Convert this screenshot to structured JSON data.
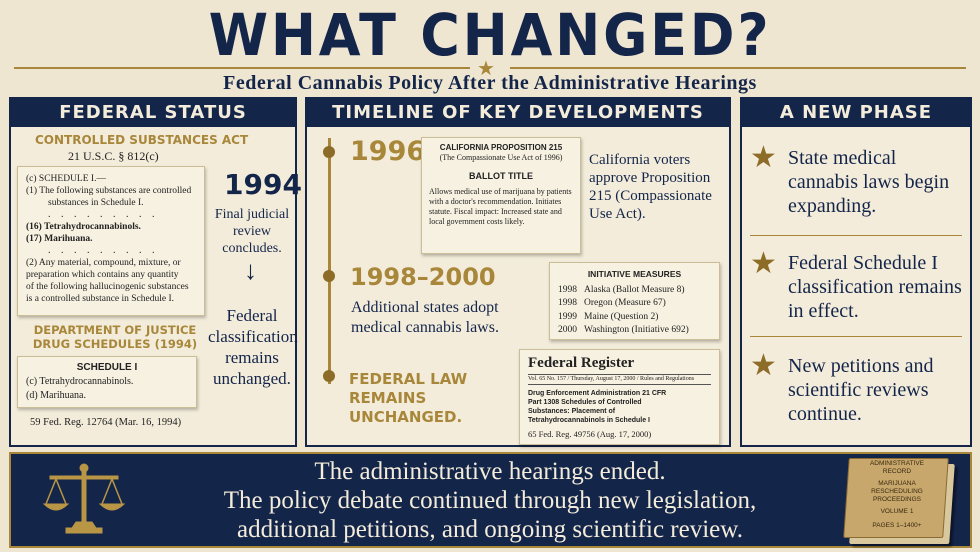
{
  "header": {
    "title": "WHAT CHANGED?",
    "subtitle": "Federal Cannabis Policy After the Administrative Hearings"
  },
  "left": {
    "heading": "FEDERAL STATUS",
    "csa_title": "CONTROLLED SUBSTANCES ACT",
    "csa_cite": "21 U.S.C. § 812(c)",
    "csa_doc": {
      "line1": "(c)  SCHEDULE I.—",
      "line2": "(1)   The following substances are controlled",
      "line3": "substances in Schedule I.",
      "line4": "(16)  Tetrahydrocannabinols.",
      "line5": "(17)  Marihuana.",
      "line6": "(2)  Any material, compound, mixture, or",
      "line7": "preparation which contains any quantity",
      "line8": "of the following hallucinogenic substances",
      "line9": "is a controlled substance in Schedule I."
    },
    "year": "1994",
    "review_text": "Final judicial review concludes.",
    "arrow": "↓",
    "fed_class_text": "Federal classification remains unchanged.",
    "doj_title": "DEPARTMENT OF JUSTICE DRUG SCHEDULES (1994)",
    "sched_doc": {
      "heading": "SCHEDULE I",
      "item1": "(c)   Tetrahydrocannabinols.",
      "item2": "(d)   Marihuana."
    },
    "citation": "59 Fed. Reg. 12764 (Mar. 16, 1994)"
  },
  "middle": {
    "heading": "TIMELINE OF KEY DEVELOPMENTS",
    "e1": {
      "year": "1996",
      "doc_title": "CALIFORNIA PROPOSITION 215",
      "doc_subtitle": "(The Compassionate Use Act of 1996)",
      "doc_heading": "BALLOT TITLE",
      "doc_body": "Allows medical use of marijuana by patients with a doctor's recommendation. Initiates statute. Fiscal impact: Increased state and local government costs likely.",
      "text": "California voters approve Proposition 215 (Compassionate Use Act)."
    },
    "e2": {
      "year": "1998–2000",
      "text": "Additional states adopt medical cannabis laws.",
      "doc_title": "INITIATIVE MEASURES",
      "rows": [
        {
          "year": "1998",
          "name": "Alaska (Ballot Measure 8)"
        },
        {
          "year": "1998",
          "name": "Oregon (Measure 67)"
        },
        {
          "year": "1999",
          "name": "Maine (Question 2)"
        },
        {
          "year": "2000",
          "name": "Washington (Initiative 692)"
        }
      ]
    },
    "e3": {
      "label": "FEDERAL LAW REMAINS UNCHANGED.",
      "doc_title": "Federal Register",
      "doc_meta": "Vol. 65   No. 157  /  Thursday, August 17, 2000  /  Rules and Regulations",
      "doc_body": "Drug Enforcement Administration 21 CFR Part 1308 Schedules of Controlled Substances: Placement of Tetrahydrocannabinols in Schedule I",
      "doc_cite": "65 Fed. Reg. 49756 (Aug. 17, 2000)"
    }
  },
  "right": {
    "heading": "A NEW PHASE",
    "items": [
      "State medical cannabis laws begin expanding.",
      "Federal Schedule I classification remains in effect.",
      "New petitions and scientific reviews continue."
    ]
  },
  "banner": {
    "line1": "The administrative hearings ended.",
    "line2": "The policy debate continued through new legislation,",
    "line3": "additional petitions, and ongoing scientific review.",
    "book": {
      "line1": "ADMINISTRATIVE",
      "line2": "RECORD",
      "line3": "MARIJUANA",
      "line4": "RESCHEDULING",
      "line5": "PROCEEDINGS",
      "line6": "VOLUME 1",
      "line7": "PAGES 1–1400+"
    }
  },
  "colors": {
    "navy": "#14254a",
    "gold": "#a8873a",
    "paper": "#efe6d2"
  }
}
